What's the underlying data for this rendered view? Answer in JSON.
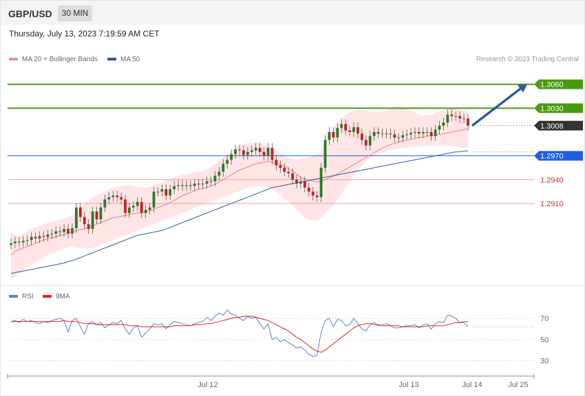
{
  "header": {
    "symbol": "GBP/USD",
    "timeframe": "30 MIN",
    "datetime": "Thursday, July 13, 2023 7:19:59 AM CET",
    "credit": "Research © 2023 Trading Central"
  },
  "legend_main": [
    {
      "label": "MA 20 + Bollinger Bands",
      "color": "#f08c8c"
    },
    {
      "label": "MA 50",
      "color": "#2e5b9a"
    }
  ],
  "legend_rsi": [
    {
      "label": "RSI",
      "color": "#5b7fd6"
    },
    {
      "label": "9MA",
      "color": "#e02020"
    }
  ],
  "colors": {
    "resistance": "#4a9a10",
    "pivot": "#2060e0",
    "support": "#d03030",
    "last": "#333333",
    "candle_up": "#2c7a2c",
    "candle_down": "#c42020",
    "band": "#ffe0e0",
    "arrow": "#2e5b9a"
  },
  "chart_data": [
    {
      "type": "candlestick",
      "instrument": "GBP/USD",
      "timeframe": "30 MIN",
      "ylim": [
        1.282,
        1.309
      ],
      "x_ticks": [
        "Jul 12",
        "Jul 13",
        "Jul 14",
        "Jul 25"
      ],
      "levels": [
        {
          "value": 1.306,
          "label": "1.3060",
          "kind": "resistance"
        },
        {
          "value": 1.303,
          "label": "1.3030",
          "kind": "resistance"
        },
        {
          "value": 1.3008,
          "label": "1.3008",
          "kind": "last"
        },
        {
          "value": 1.297,
          "label": "1.2970",
          "kind": "pivot"
        },
        {
          "value": 1.294,
          "label": "1.2940",
          "kind": "support"
        },
        {
          "value": 1.291,
          "label": "1.2910",
          "kind": "support"
        }
      ],
      "close": [
        1.286,
        1.2862,
        1.2861,
        1.2863,
        1.2864,
        1.2868,
        1.2866,
        1.2869,
        1.2868,
        1.2871,
        1.2872,
        1.2875,
        1.2874,
        1.2878,
        1.2872,
        1.2879,
        1.2905,
        1.2893,
        1.2884,
        1.2878,
        1.29,
        1.289,
        1.2905,
        1.2915,
        1.2918,
        1.292,
        1.2918,
        1.2915,
        1.2898,
        1.2905,
        1.2907,
        1.2912,
        1.2898,
        1.2902,
        1.2905,
        1.2925,
        1.2925,
        1.2928,
        1.292,
        1.2928,
        1.2932,
        1.2933,
        1.2932,
        1.2933,
        1.2932,
        1.2935,
        1.2934,
        1.2935,
        1.2938,
        1.2938,
        1.2945,
        1.295,
        1.296,
        1.2965,
        1.2972,
        1.2978,
        1.2977,
        1.2971,
        1.2975,
        1.2977,
        1.298,
        1.2975,
        1.297,
        1.298,
        1.2965,
        1.2958,
        1.2955,
        1.295,
        1.2948,
        1.294,
        1.2935,
        1.2938,
        1.293,
        1.2925,
        1.292,
        1.2918,
        1.2955,
        1.299,
        1.3,
        1.2993,
        1.3005,
        1.301,
        1.3002,
        1.3,
        1.3006,
        1.2998,
        1.299,
        1.2983,
        1.2995,
        1.3,
        1.2998,
        1.2998,
        1.2998,
        1.2997,
        1.2993,
        1.2993,
        1.2996,
        1.2997,
        1.2999,
        1.3,
        1.2998,
        1.3,
        1.3,
        1.2995,
        1.3003,
        1.3008,
        1.3012,
        1.3022,
        1.302,
        1.302,
        1.3017,
        1.3017,
        1.3008
      ],
      "ma20": [
        1.2845,
        1.285,
        1.2852,
        1.2854,
        1.2856,
        1.2858,
        1.286,
        1.2862,
        1.2864,
        1.2866,
        1.2867,
        1.2868,
        1.287,
        1.2871,
        1.2873,
        1.2874,
        1.2876,
        1.2877,
        1.2878,
        1.288,
        1.2882,
        1.2884,
        1.2886,
        1.2888,
        1.289,
        1.2892,
        1.2893,
        1.2894,
        1.2895,
        1.2896,
        1.2897,
        1.2898,
        1.2899,
        1.29,
        1.2901,
        1.2903,
        1.2905,
        1.2907,
        1.2909,
        1.2911,
        1.2914,
        1.2917,
        1.292,
        1.2922,
        1.2924,
        1.2926,
        1.2928,
        1.2929,
        1.293,
        1.2932,
        1.2934,
        1.2937,
        1.294,
        1.2943,
        1.2946,
        1.2949,
        1.2952,
        1.2954,
        1.2956,
        1.2958,
        1.296,
        1.2961,
        1.2962,
        1.2963,
        1.2962,
        1.2961,
        1.2959,
        1.2957,
        1.2954,
        1.2951,
        1.2947,
        1.2943,
        1.2941,
        1.2939,
        1.2938,
        1.2937,
        1.2938,
        1.294,
        1.2942,
        1.2944,
        1.2947,
        1.295,
        1.2953,
        1.2956,
        1.2959,
        1.2962,
        1.2965,
        1.2968,
        1.2971,
        1.2974,
        1.2977,
        1.298,
        1.2982,
        1.2984,
        1.2986,
        1.2987,
        1.2989,
        1.299,
        1.2991,
        1.2992,
        1.2993,
        1.2994,
        1.2995,
        1.2995,
        1.2996,
        1.2997,
        1.2998,
        1.2999,
        1.3,
        1.3001,
        1.3002,
        1.3003,
        1.3004
      ],
      "bb_upper": [
        1.2875,
        1.287,
        1.2868,
        1.2872,
        1.2875,
        1.2878,
        1.288,
        1.2882,
        1.2884,
        1.2886,
        1.2887,
        1.2888,
        1.289,
        1.2891,
        1.2893,
        1.2895,
        1.29,
        1.2905,
        1.291,
        1.2912,
        1.2918,
        1.292,
        1.2922,
        1.2925,
        1.2928,
        1.293,
        1.2931,
        1.2932,
        1.2933,
        1.2933,
        1.2932,
        1.2931,
        1.293,
        1.293,
        1.2931,
        1.2933,
        1.2935,
        1.2937,
        1.2939,
        1.2941,
        1.2943,
        1.2945,
        1.2946,
        1.2947,
        1.2948,
        1.2949,
        1.295,
        1.2951,
        1.2953,
        1.2956,
        1.296,
        1.2964,
        1.2968,
        1.2972,
        1.2976,
        1.298,
        1.2983,
        1.2985,
        1.2986,
        1.2987,
        1.2987,
        1.2986,
        1.2984,
        1.2982,
        1.298,
        1.2977,
        1.2974,
        1.297,
        1.2968,
        1.2966,
        1.2965,
        1.2966,
        1.2967,
        1.2968,
        1.297,
        1.2972,
        1.2976,
        1.2985,
        1.2995,
        1.3005,
        1.3012,
        1.3018,
        1.3022,
        1.3025,
        1.3027,
        1.3028,
        1.3028,
        1.3027,
        1.3026,
        1.3025,
        1.3025,
        1.3026,
        1.3028,
        1.303,
        1.3032,
        1.3033,
        1.3032,
        1.303,
        1.3027,
        1.3024,
        1.3022,
        1.3021,
        1.3021,
        1.3022,
        1.3024,
        1.3026,
        1.3028,
        1.303,
        1.303,
        1.3029,
        1.3028,
        1.3027,
        1.3026
      ],
      "bb_lower": [
        1.2815,
        1.2818,
        1.2822,
        1.2826,
        1.283,
        1.2833,
        1.2836,
        1.2839,
        1.2842,
        1.2845,
        1.2847,
        1.2849,
        1.2851,
        1.2853,
        1.2855,
        1.2856,
        1.2855,
        1.2854,
        1.2853,
        1.2853,
        1.2854,
        1.2856,
        1.2858,
        1.286,
        1.2862,
        1.2864,
        1.2866,
        1.2868,
        1.287,
        1.2872,
        1.2874,
        1.2876,
        1.2878,
        1.288,
        1.2882,
        1.2884,
        1.2886,
        1.2888,
        1.289,
        1.2892,
        1.2894,
        1.2896,
        1.2898,
        1.29,
        1.2902,
        1.2904,
        1.2906,
        1.2908,
        1.291,
        1.2912,
        1.2914,
        1.2916,
        1.2918,
        1.292,
        1.2922,
        1.2924,
        1.2926,
        1.2928,
        1.293,
        1.2931,
        1.2932,
        1.2932,
        1.2931,
        1.293,
        1.2928,
        1.2925,
        1.2921,
        1.2916,
        1.2912,
        1.2907,
        1.2902,
        1.2898,
        1.2893,
        1.289,
        1.2888,
        1.2888,
        1.2892,
        1.2897,
        1.2902,
        1.2908,
        1.2915,
        1.2922,
        1.293,
        1.2938,
        1.2945,
        1.2952,
        1.2958,
        1.2963,
        1.2967,
        1.297,
        1.2972,
        1.2974,
        1.2976,
        1.2977,
        1.2978,
        1.2979,
        1.298,
        1.298,
        1.2981,
        1.2981,
        1.2982,
        1.2982,
        1.2983,
        1.2983,
        1.2983,
        1.2983,
        1.2983,
        1.2983,
        1.2982,
        1.2982,
        1.2981,
        1.298,
        1.298
      ],
      "ma50": [
        1.2822,
        1.2823,
        1.2824,
        1.2825,
        1.2826,
        1.2827,
        1.2828,
        1.2829,
        1.283,
        1.2831,
        1.2832,
        1.2833,
        1.2834,
        1.2835,
        1.2837,
        1.2838,
        1.284,
        1.2842,
        1.2844,
        1.2846,
        1.2848,
        1.285,
        1.2852,
        1.2854,
        1.2856,
        1.2858,
        1.286,
        1.2862,
        1.2864,
        1.2866,
        1.2868,
        1.287,
        1.2871,
        1.2872,
        1.2873,
        1.2874,
        1.2875,
        1.2876,
        1.2878,
        1.288,
        1.2882,
        1.2884,
        1.2886,
        1.2888,
        1.289,
        1.2892,
        1.2894,
        1.2896,
        1.2898,
        1.29,
        1.2902,
        1.2904,
        1.2906,
        1.2908,
        1.291,
        1.2912,
        1.2914,
        1.2916,
        1.2918,
        1.292,
        1.2922,
        1.2924,
        1.2926,
        1.2928,
        1.293,
        1.2931,
        1.2932,
        1.2933,
        1.2934,
        1.2935,
        1.2936,
        1.2937,
        1.2938,
        1.2939,
        1.294,
        1.2941,
        1.2942,
        1.2943,
        1.2944,
        1.2945,
        1.2946,
        1.2947,
        1.2948,
        1.2949,
        1.295,
        1.2951,
        1.2952,
        1.2953,
        1.2954,
        1.2955,
        1.2956,
        1.2957,
        1.2958,
        1.2959,
        1.296,
        1.2961,
        1.2962,
        1.2963,
        1.2964,
        1.2965,
        1.2966,
        1.2967,
        1.2968,
        1.2969,
        1.297,
        1.2971,
        1.2972,
        1.2973,
        1.2974,
        1.2975,
        1.2975,
        1.2976,
        1.2976
      ]
    },
    {
      "type": "line",
      "panel": "RSI",
      "ylim": [
        20,
        85
      ],
      "y_ticks": [
        70,
        50,
        30
      ],
      "rsi": [
        67,
        68,
        66,
        69,
        67,
        68,
        66,
        65,
        67,
        66,
        68,
        69,
        70,
        68,
        57,
        68,
        70,
        62,
        55,
        65,
        67,
        64,
        66,
        61,
        64,
        66,
        65,
        68,
        60,
        55,
        61,
        63,
        52,
        56,
        60,
        65,
        64,
        65,
        60,
        64,
        67,
        66,
        65,
        64,
        63,
        65,
        66,
        67,
        71,
        68,
        72,
        75,
        73,
        78,
        74,
        73,
        70,
        68,
        72,
        70,
        71,
        65,
        60,
        65,
        50,
        52,
        48,
        50,
        47,
        45,
        42,
        43,
        40,
        36,
        34,
        35,
        57,
        68,
        70,
        62,
        69,
        68,
        63,
        64,
        70,
        65,
        60,
        58,
        64,
        66,
        63,
        64,
        65,
        63,
        61,
        61,
        62,
        63,
        63,
        64,
        61,
        64,
        65,
        60,
        65,
        67,
        66,
        73,
        72,
        70,
        66,
        66,
        62
      ],
      "ma9": [
        67,
        67,
        67,
        67,
        67,
        67,
        67,
        67,
        67,
        67,
        67,
        67,
        67,
        68,
        67,
        67,
        67,
        66,
        65,
        65,
        65,
        64,
        64,
        64,
        64,
        64,
        64,
        64,
        64,
        63,
        63,
        63,
        62,
        62,
        62,
        62,
        62,
        62,
        62,
        62,
        63,
        63,
        63,
        63,
        63,
        64,
        64,
        64,
        65,
        65,
        66,
        67,
        68,
        69,
        70,
        71,
        71,
        72,
        72,
        72,
        71,
        70,
        69,
        68,
        66,
        64,
        62,
        60,
        58,
        55,
        52,
        50,
        47,
        44,
        41,
        39,
        38,
        40,
        43,
        46,
        49,
        52,
        55,
        58,
        61,
        63,
        64,
        65,
        65,
        64,
        64,
        63,
        63,
        63,
        63,
        63,
        62,
        62,
        62,
        62,
        62,
        62,
        63,
        63,
        63,
        63,
        63,
        64,
        65,
        66,
        66,
        67,
        67
      ]
    }
  ]
}
